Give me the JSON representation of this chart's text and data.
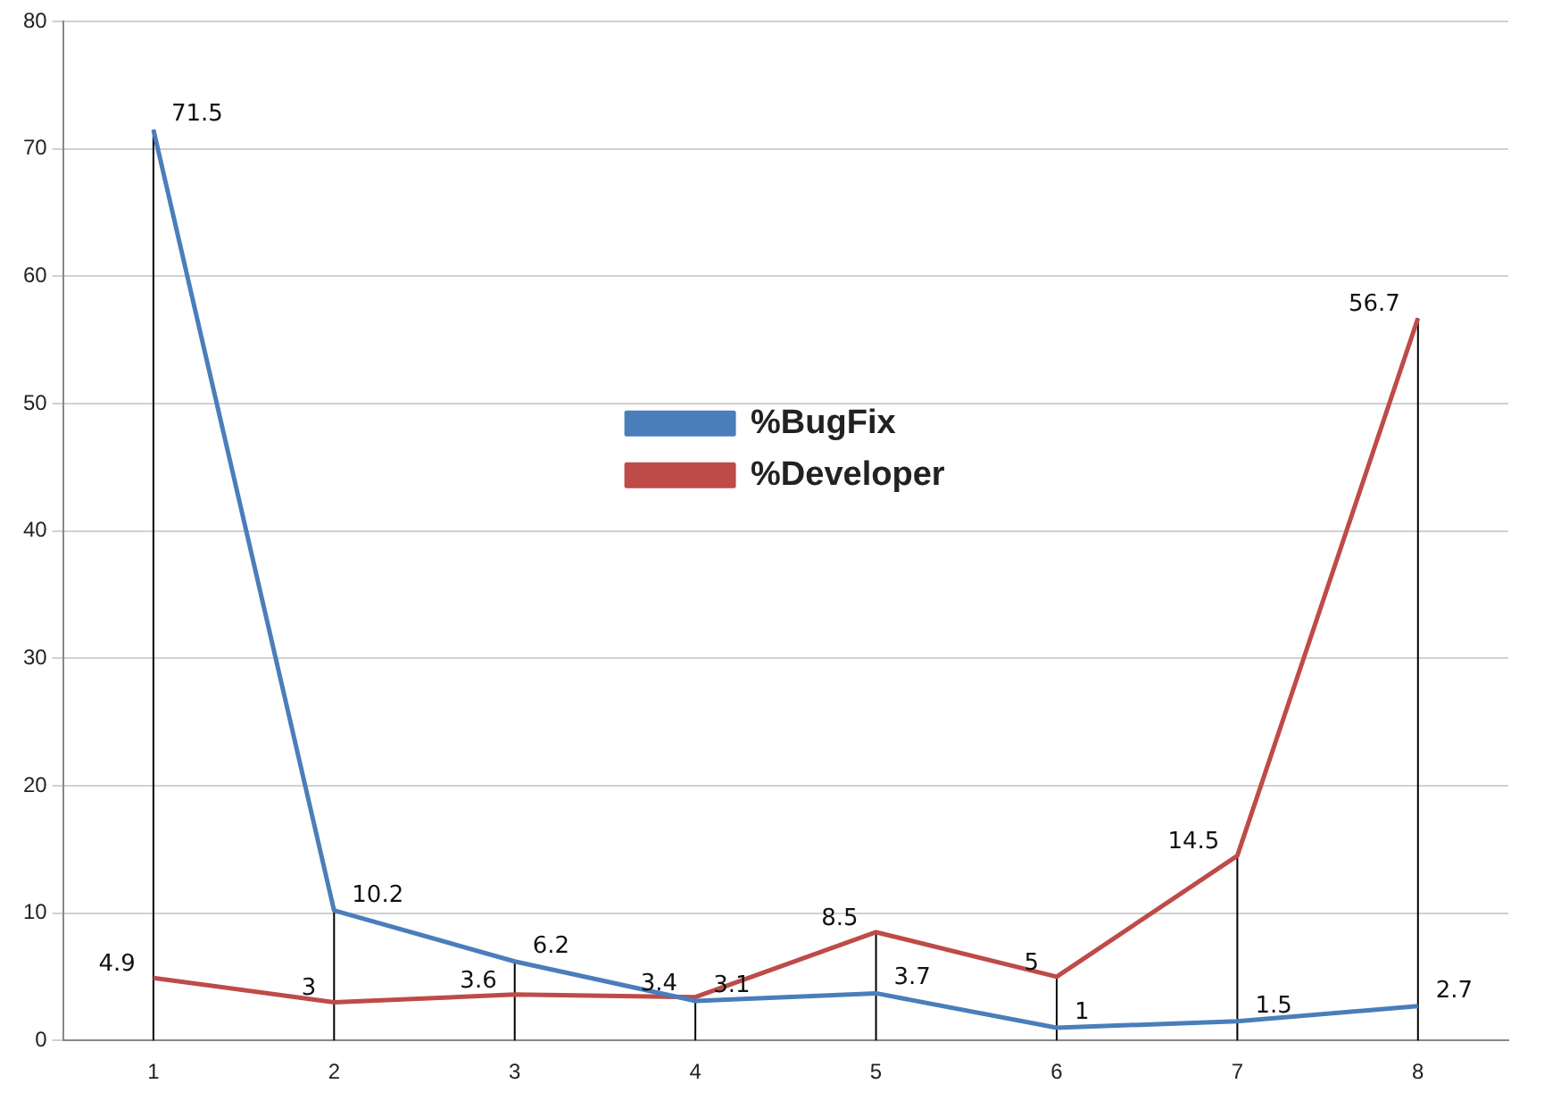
{
  "chart_data": {
    "type": "line",
    "categories": [
      "1",
      "2",
      "3",
      "4",
      "5",
      "6",
      "7",
      "8"
    ],
    "series": [
      {
        "name": "%BugFix",
        "color": "#4a7ebb",
        "values": [
          71.5,
          10.2,
          6.2,
          3.1,
          3.7,
          1,
          1.5,
          2.7
        ]
      },
      {
        "name": "%Developer",
        "color": "#be4b48",
        "values": [
          4.9,
          3,
          3.6,
          3.4,
          8.5,
          5,
          14.5,
          56.7
        ]
      }
    ],
    "ylim": [
      0,
      80
    ],
    "yticks": [
      0,
      10,
      20,
      30,
      40,
      50,
      60,
      70,
      80
    ],
    "grid": true,
    "legend": "center",
    "marker": "none",
    "line_style": "solid",
    "data_labels": true
  }
}
